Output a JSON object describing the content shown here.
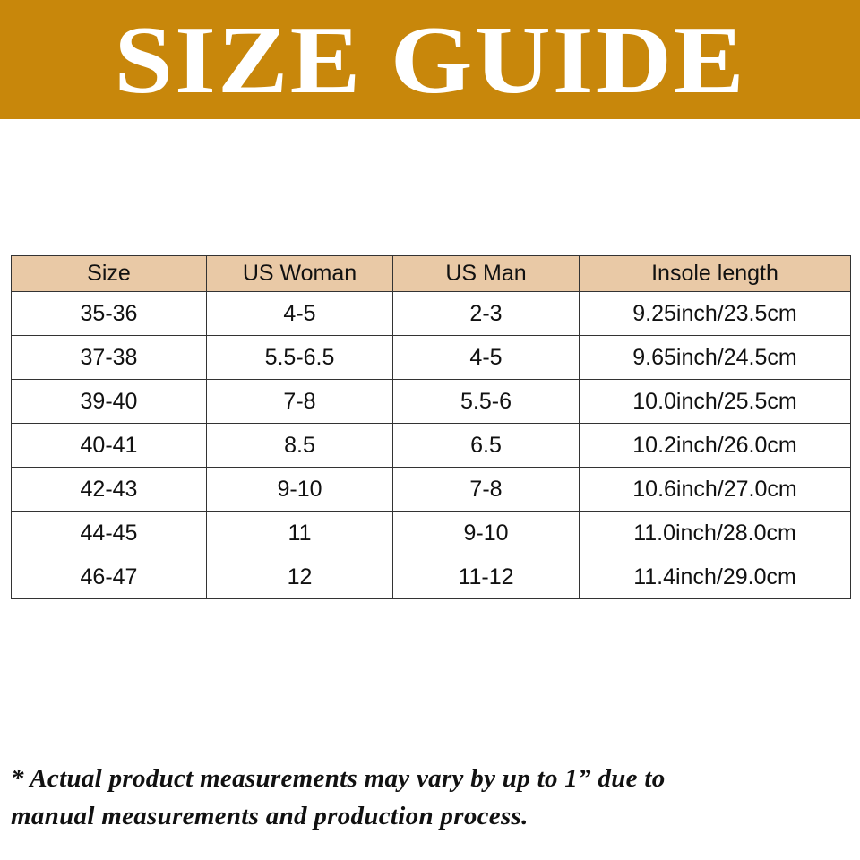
{
  "title": "SIZE GUIDE",
  "colors": {
    "banner": "#c8870b",
    "header_bg": "#e9c9a6"
  },
  "table": {
    "headers": [
      "Size",
      "US Woman",
      "US Man",
      "Insole length"
    ],
    "rows": [
      [
        "35-36",
        "4-5",
        "2-3",
        "9.25inch/23.5cm"
      ],
      [
        "37-38",
        "5.5-6.5",
        "4-5",
        "9.65inch/24.5cm"
      ],
      [
        "39-40",
        "7-8",
        "5.5-6",
        "10.0inch/25.5cm"
      ],
      [
        "40-41",
        "8.5",
        "6.5",
        "10.2inch/26.0cm"
      ],
      [
        "42-43",
        "9-10",
        "7-8",
        "10.6inch/27.0cm"
      ],
      [
        "44-45",
        "11",
        "9-10",
        "11.0inch/28.0cm"
      ],
      [
        "46-47",
        "12",
        "11-12",
        "11.4inch/29.0cm"
      ]
    ]
  },
  "note": {
    "line1": "* Actual product measurements may vary by up to 1” due to",
    "line2": "manual measurements and production process."
  }
}
